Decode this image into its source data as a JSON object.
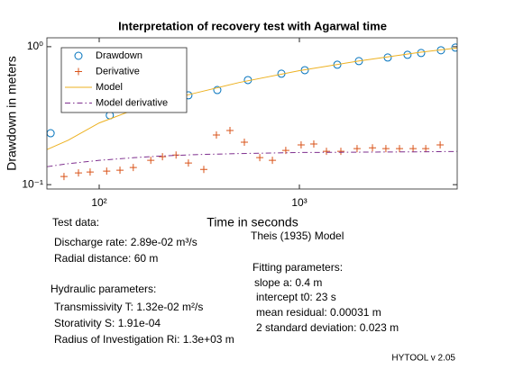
{
  "chart_data": {
    "type": "scatter",
    "title": "Interpretation of recovery test with Agarwal time",
    "x_label": "Time in seconds",
    "y_label": "Drawdown in meters",
    "xscale": "log",
    "yscale": "log",
    "xlim": [
      54.8,
      6140
    ],
    "ylim": [
      0.093,
      1.16
    ],
    "xticks": [
      {
        "value": 100,
        "label": "10²"
      },
      {
        "value": 1000,
        "label": "10³"
      }
    ],
    "yticks": [
      {
        "value": 0.1,
        "label": "10⁻¹"
      },
      {
        "value": 1,
        "label": "10⁰"
      }
    ],
    "grid": false,
    "legend": "upper left",
    "series": [
      {
        "name": "Drawdown",
        "color": "#0072bd",
        "marker": "o",
        "x": [
          57.2,
          113,
          279,
          389,
          553,
          813,
          1064,
          1546,
          1982,
          2762,
          3467,
          4055,
          5093,
          6012
        ],
        "values": [
          0.236,
          0.318,
          0.444,
          0.485,
          0.573,
          0.637,
          0.676,
          0.74,
          0.786,
          0.835,
          0.873,
          0.9,
          0.942,
          0.985
        ]
      },
      {
        "name": "Derivative",
        "color": "#d95319",
        "marker": "+",
        "x": [
          66.7,
          78.8,
          90.1,
          109,
          127,
          148,
          181,
          207,
          242,
          279,
          333,
          385,
          450,
          531,
          634,
          733,
          855,
          1020,
          1180,
          1365,
          1611,
          1941,
          2317,
          2704,
          3162,
          3696,
          4276,
          5047
        ],
        "values": [
          0.1146,
          0.1216,
          0.1235,
          0.1253,
          0.1273,
          0.1331,
          0.15,
          0.1595,
          0.164,
          0.1435,
          0.129,
          0.229,
          0.247,
          0.203,
          0.157,
          0.15,
          0.177,
          0.194,
          0.197,
          0.1746,
          0.1746,
          0.1825,
          0.185,
          0.1825,
          0.1825,
          0.1825,
          0.1825,
          0.194
        ]
      },
      {
        "name": "Model",
        "color": "#edb120",
        "linestyle": "solid",
        "x": [
          55,
          70,
          100,
          150,
          200,
          300,
          500,
          1000,
          2000,
          4000,
          6140
        ],
        "values": [
          0.18,
          0.21,
          0.28,
          0.35,
          0.4,
          0.46,
          0.55,
          0.67,
          0.79,
          0.91,
          0.98
        ]
      },
      {
        "name": "Model derivative",
        "color": "#7e2f8e",
        "linestyle": "dashdot",
        "x": [
          55,
          70,
          100,
          150,
          200,
          300,
          500,
          1000,
          2000,
          4000,
          6140
        ],
        "values": [
          0.135,
          0.142,
          0.15,
          0.157,
          0.161,
          0.165,
          0.168,
          0.171,
          0.172,
          0.173,
          0.174
        ]
      }
    ],
    "annotations": [
      "Test data:",
      "Discharge rate: 2.89e-02 m³/s",
      "Radial distance: 60 m",
      "Hydraulic parameters:",
      "Transmissivity T: 1.32e-02 m²/s",
      "Storativity S: 1.91e-04",
      "Radius of Investigation Ri: 1.3e+03 m",
      "Theis (1935) Model",
      "Fitting parameters:",
      "slope a: 0.4 m",
      "intercept t0: 23 s",
      "mean residual: 0.00031 m",
      "2 standard deviation: 0.023 m"
    ],
    "footer": "HYTOOL v 2.05"
  }
}
